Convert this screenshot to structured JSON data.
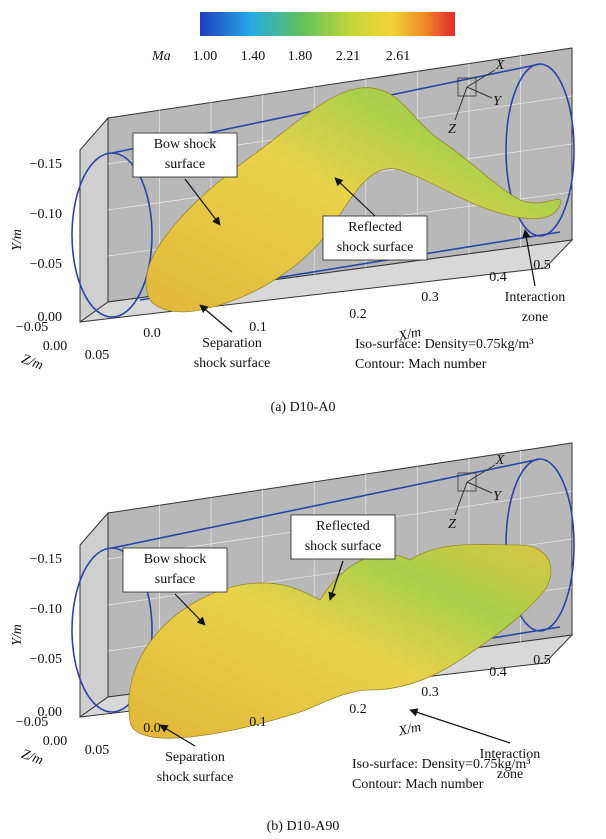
{
  "colorbar": {
    "label": "Ma",
    "ticks": [
      "1.00",
      "1.40",
      "1.80",
      "2.21",
      "2.61"
    ]
  },
  "panels": [
    {
      "caption": "(a) D10-A0",
      "y_axis_label": "Y/m",
      "y_ticks": [
        "−0.15",
        "−0.10",
        "−0.05",
        "0.00"
      ],
      "z_axis_label": "Z/m",
      "z_ticks": [
        "−0.05",
        "0.00",
        "0.05"
      ],
      "x_axis_label": "X/m",
      "x_ticks": [
        "0.0",
        "0.1",
        "0.2",
        "0.3",
        "0.4",
        "0.5"
      ],
      "triad": [
        "X",
        "Y",
        "Z"
      ],
      "annotations": [
        {
          "lines": [
            "Bow shock",
            "surface"
          ]
        },
        {
          "lines": [
            "Reflected",
            "shock surface"
          ]
        },
        {
          "lines": [
            "Separation",
            "shock surface"
          ]
        },
        {
          "lines": [
            "Interaction",
            "zone"
          ]
        }
      ],
      "legend": [
        "Iso-surface: Density=0.75kg/m³",
        "Contour: Mach number"
      ]
    },
    {
      "caption": "(b) D10-A90",
      "y_axis_label": "Y/m",
      "y_ticks": [
        "−0.15",
        "−0.10",
        "−0.05",
        "0.00"
      ],
      "z_axis_label": "Z/m",
      "z_ticks": [
        "−0.05",
        "0.00",
        "0.05"
      ],
      "x_axis_label": "X/m",
      "x_ticks": [
        "0.0",
        "0.1",
        "0.2",
        "0.3",
        "0.4",
        "0.5"
      ],
      "triad": [
        "X",
        "Y",
        "Z"
      ],
      "annotations": [
        {
          "lines": [
            "Bow shock",
            "surface"
          ]
        },
        {
          "lines": [
            "Reflected",
            "shock surface"
          ]
        },
        {
          "lines": [
            "Separation",
            "shock surface"
          ]
        },
        {
          "lines": [
            "Interaction",
            "zone"
          ]
        }
      ],
      "legend": [
        "Iso-surface: Density=0.75kg/m³",
        "Contour: Mach number"
      ]
    }
  ]
}
